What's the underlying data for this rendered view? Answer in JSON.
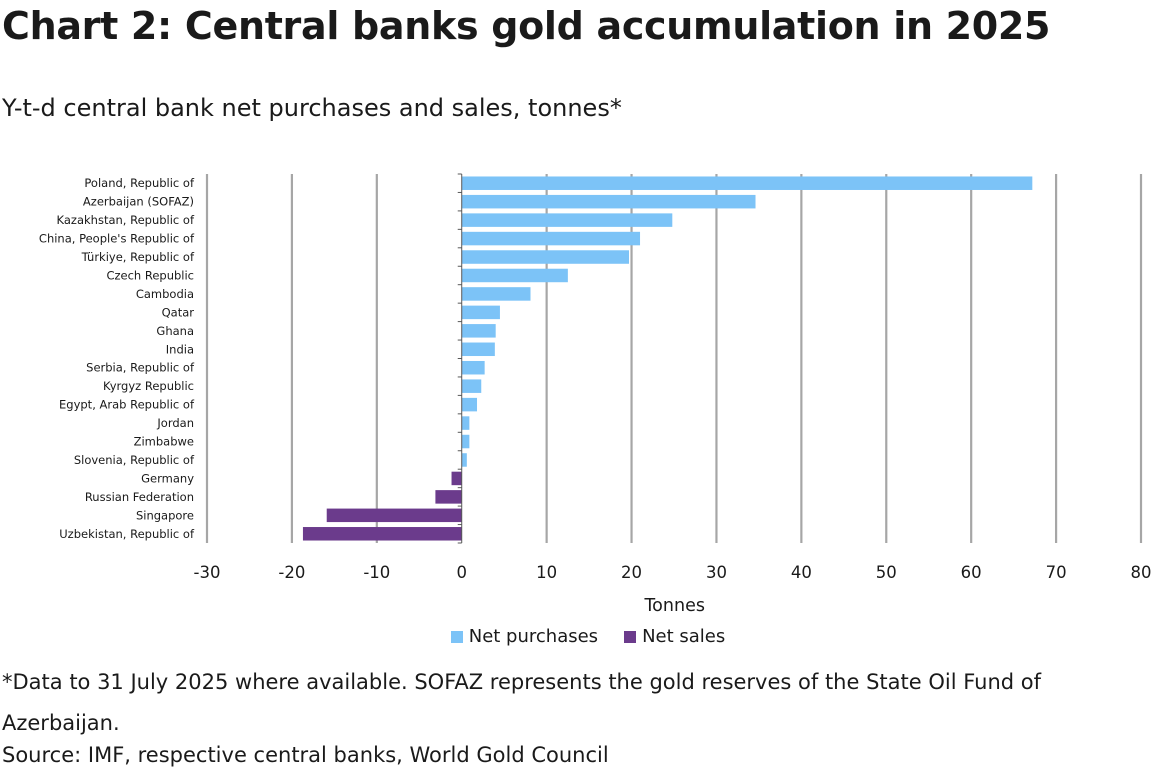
{
  "title": "Chart 2: Central banks gold accumulation in 2025",
  "subtitle": "Y-t-d central bank net purchases and sales, tonnes*",
  "footnote": "*Data to 31 July 2025 where available. SOFAZ represents the gold reserves of the State Oil Fund of Azerbaijan.",
  "source": "Source: IMF, respective central banks, World Gold Council",
  "colors": {
    "purchases": "#7cc3f7",
    "sales": "#6b3b8c",
    "grid": "#a6a6a6"
  },
  "chart_data": {
    "type": "bar",
    "orientation": "horizontal",
    "xlabel": "Tonnes",
    "xlim": [
      -30,
      80
    ],
    "xticks": [
      -30,
      -20,
      -10,
      0,
      10,
      20,
      30,
      40,
      50,
      60,
      70,
      80
    ],
    "grid": true,
    "legend_position": "bottom",
    "categories": [
      "Poland, Republic of",
      "Azerbaijan (SOFAZ)",
      "Kazakhstan, Republic of",
      "China, People's Republic of",
      "Türkiye, Republic of",
      "Czech Republic",
      "Cambodia",
      "Qatar",
      "Ghana",
      "India",
      "Serbia, Republic of",
      "Kyrgyz Republic",
      "Egypt, Arab Republic of",
      "Jordan",
      "Zimbabwe",
      "Slovenia, Republic of",
      "Germany",
      "Russian Federation",
      "Singapore",
      "Uzbekistan, Republic of"
    ],
    "series": [
      {
        "name": "Net purchases",
        "values": [
          67.2,
          34.6,
          24.8,
          21.0,
          19.7,
          12.5,
          8.1,
          4.5,
          4.0,
          3.9,
          2.7,
          2.3,
          1.8,
          0.9,
          0.9,
          0.6,
          0,
          0,
          0,
          0
        ]
      },
      {
        "name": "Net sales",
        "values": [
          0,
          0,
          0,
          0,
          0,
          0,
          0,
          0,
          0,
          0,
          0,
          0,
          0,
          0,
          0,
          0,
          -1.2,
          -3.1,
          -15.9,
          -18.7
        ]
      }
    ]
  }
}
